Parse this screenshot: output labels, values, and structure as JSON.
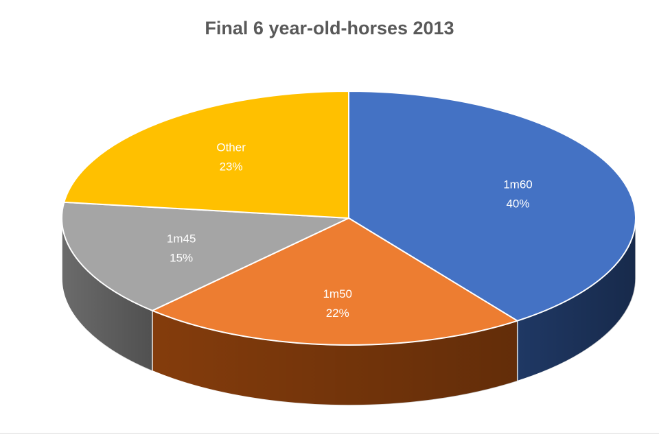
{
  "chart_data": {
    "type": "pie",
    "title": "Final 6 year-old-horses 2013",
    "three_d": true,
    "slices": [
      {
        "label": "1m60",
        "value": 40,
        "value_label": "40%",
        "color": "#4472C4",
        "side_color": "#1F3864"
      },
      {
        "label": "1m50",
        "value": 22,
        "value_label": "22%",
        "color": "#ED7D31",
        "side_color": "#843C0C"
      },
      {
        "label": "1m45",
        "value": 15,
        "value_label": "15%",
        "color": "#A5A5A5",
        "side_color": "#6B6B6B"
      },
      {
        "label": "Other",
        "value": 23,
        "value_label": "23%",
        "color": "#FFC000",
        "side_color": "#9C7600"
      }
    ],
    "legend": "none"
  }
}
